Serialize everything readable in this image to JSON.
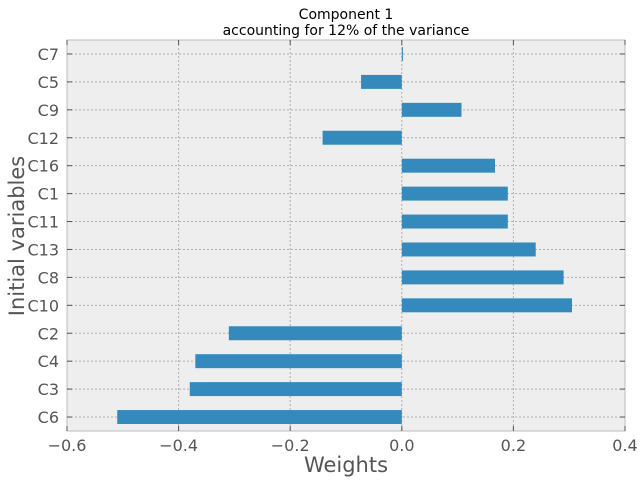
{
  "chart_data": {
    "type": "bar",
    "orientation": "horizontal",
    "title_lines": [
      "Component 1",
      "accounting for 12% of the variance"
    ],
    "xlabel": "Weights",
    "ylabel": "Initial variables",
    "xlim": [
      -0.6,
      0.4
    ],
    "xticks": [
      -0.6,
      -0.4,
      -0.2,
      0.0,
      0.2,
      0.4
    ],
    "xtick_labels": [
      "−0.6",
      "−0.4",
      "−0.2",
      "0.0",
      "0.2",
      "0.4"
    ],
    "categories": [
      "C6",
      "C3",
      "C4",
      "C2",
      "C10",
      "C8",
      "C13",
      "C11",
      "C1",
      "C16",
      "C12",
      "C9",
      "C5",
      "C7"
    ],
    "values": [
      -0.51,
      -0.38,
      -0.37,
      -0.31,
      0.305,
      0.29,
      0.24,
      0.19,
      0.19,
      0.167,
      -0.142,
      0.107,
      -0.073,
      0.002
    ],
    "grid": true,
    "colors": {
      "bar": "#348abd",
      "background": "#eeeeee",
      "frame": "#bcbcbc",
      "grid": "#b0b0b0"
    }
  }
}
